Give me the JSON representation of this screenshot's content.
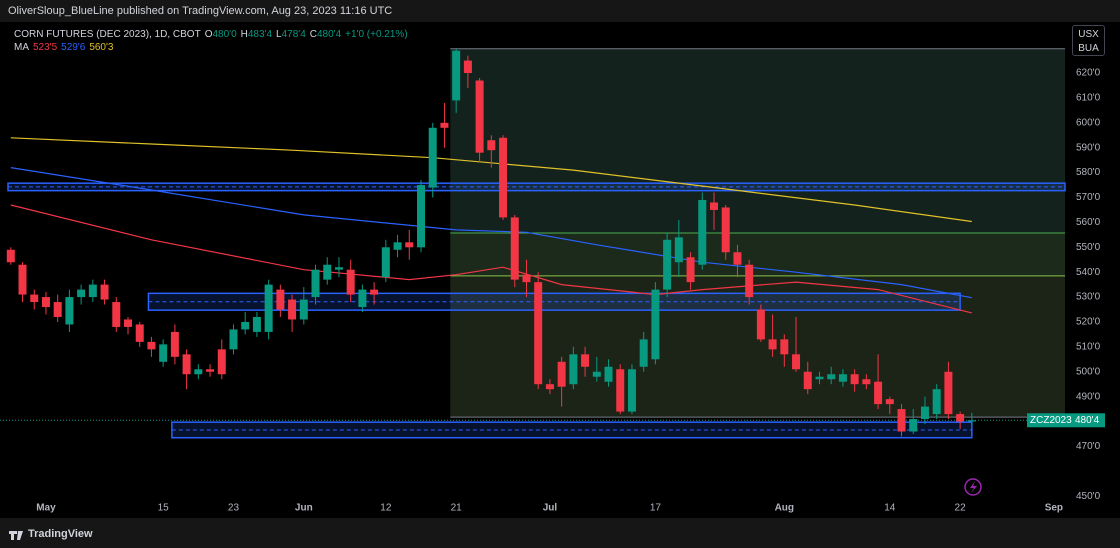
{
  "publisher": "OliverSloup_BlueLine published on TradingView.com, Aug 23, 2023 11:16 UTC",
  "currency_box": [
    "USX",
    "BUA"
  ],
  "footer": "TradingView",
  "chart_data": {
    "type": "candlestick",
    "title": "CORN FUTURES (DEC 2023), 1D, CBOT",
    "ohlc_labels": [
      {
        "key": "O",
        "value": "480'0"
      },
      {
        "key": "H",
        "value": "483'4"
      },
      {
        "key": "L",
        "value": "478'4"
      },
      {
        "key": "C",
        "value": "480'4"
      },
      {
        "key": "",
        "value": "+1'0 (+0.21%)"
      }
    ],
    "up_color": "#089981",
    "down_color": "#f23645",
    "categories": [
      null,
      null,
      null,
      "May",
      null,
      null,
      null,
      null,
      null,
      null,
      null,
      null,
      null,
      "15",
      null,
      null,
      null,
      null,
      null,
      "23",
      null,
      null,
      null,
      null,
      null,
      "Jun",
      null,
      null,
      null,
      null,
      null,
      null,
      "12",
      null,
      null,
      null,
      null,
      null,
      "21",
      null,
      null,
      null,
      null,
      null,
      null,
      null,
      "Jul",
      null,
      null,
      null,
      null,
      null,
      null,
      null,
      null,
      "17",
      null,
      null,
      null,
      null,
      null,
      null,
      null,
      null,
      null,
      null,
      "Aug",
      null,
      null,
      null,
      null,
      null,
      null,
      null,
      null,
      "14",
      null,
      null,
      null,
      null,
      null,
      "22",
      null,
      null,
      null,
      null,
      null,
      null,
      null,
      "Sep"
    ],
    "open": [
      549,
      543,
      531,
      530,
      528,
      519,
      530,
      530,
      535,
      528,
      521,
      519,
      512,
      504,
      516,
      507,
      499,
      501,
      509,
      509,
      517,
      516,
      516,
      533,
      529,
      521,
      530,
      537,
      541,
      541,
      526,
      533,
      538,
      549,
      552,
      550,
      574,
      600,
      609,
      625,
      617,
      593,
      594,
      562,
      539,
      536,
      495,
      504,
      495,
      507,
      498,
      496,
      501,
      484,
      502,
      505,
      533,
      544,
      546,
      543,
      568,
      566,
      548,
      543,
      525,
      513,
      513,
      507,
      500,
      497,
      497,
      496,
      499,
      497,
      496,
      489,
      485,
      476,
      481,
      483,
      500,
      483,
      480,
      null,
      null,
      null,
      null,
      null,
      null,
      null
    ],
    "high": [
      550,
      544,
      533,
      532,
      531,
      533,
      535,
      537,
      537,
      530,
      522,
      520,
      514,
      513,
      519,
      509,
      503,
      503,
      513,
      519,
      524,
      524,
      537,
      535,
      531,
      534,
      543,
      546,
      546,
      545,
      535,
      536,
      553,
      555,
      557,
      577,
      600,
      608,
      630,
      627,
      618,
      595,
      595,
      563,
      545,
      540,
      497,
      506,
      510,
      510,
      506,
      505,
      503,
      503,
      516,
      536,
      556,
      561,
      548,
      572,
      572,
      567,
      551,
      545,
      527,
      523,
      515,
      522,
      504,
      500,
      502,
      501,
      501,
      499,
      507,
      490,
      487,
      485,
      490,
      495,
      504,
      484,
      483.5,
      null,
      null,
      null,
      null,
      null,
      null,
      null
    ],
    "low": [
      543,
      528,
      525,
      523,
      520,
      516,
      527,
      528,
      527,
      516,
      515,
      510,
      506,
      502,
      503,
      493,
      497,
      498,
      497,
      507,
      515,
      514,
      513,
      522,
      516,
      519,
      527,
      535,
      538,
      528,
      524,
      527,
      536,
      546,
      545,
      548,
      570,
      590,
      604,
      614,
      584,
      582,
      561,
      534,
      530,
      493,
      491,
      486,
      493,
      498,
      496,
      494,
      483,
      483,
      500,
      503,
      530,
      538,
      533,
      541,
      557,
      545,
      538,
      527,
      512,
      506,
      502,
      500,
      491,
      495,
      495,
      494,
      492,
      493,
      485,
      483,
      474,
      475,
      479,
      481,
      481,
      477,
      478.5,
      null,
      null,
      null,
      null,
      null,
      null,
      null
    ],
    "close": [
      544,
      531,
      528,
      526,
      522,
      530,
      533,
      535,
      529,
      518,
      518,
      512,
      509,
      511,
      506,
      499,
      501,
      500,
      499,
      517,
      520,
      522,
      535,
      525,
      521,
      529,
      541,
      543,
      542,
      531,
      533,
      531,
      550,
      552,
      550,
      575,
      598,
      598,
      629,
      620,
      588,
      589,
      562,
      537,
      536,
      495,
      493,
      494,
      507,
      502,
      500,
      502,
      484,
      501,
      513,
      533,
      553,
      554,
      536,
      569,
      565,
      548,
      543,
      530,
      513,
      509,
      507,
      501,
      493,
      498,
      499,
      499,
      495,
      495,
      487,
      487,
      476,
      481,
      486,
      493,
      483,
      480,
      480.5,
      null,
      null,
      null,
      null,
      null,
      null,
      null
    ],
    "moving_averages": {
      "title": "MA",
      "series": [
        {
          "color": "#f23645",
          "value_label": "523'5",
          "x": [
            0,
            12,
            25,
            34,
            38,
            42,
            47,
            55,
            59,
            67,
            74,
            82
          ],
          "values": [
            567,
            553,
            541,
            537,
            539,
            542,
            535,
            531,
            533,
            536,
            533,
            523.625
          ]
        },
        {
          "color": "#2962ff",
          "value_label": "529'6",
          "x": [
            0,
            12,
            25,
            38,
            44,
            50,
            59,
            67,
            76,
            82
          ],
          "values": [
            582,
            573,
            563,
            557,
            556,
            551,
            544,
            540,
            535,
            529.75
          ]
        },
        {
          "color": "#e0c12a",
          "value_label": "560'3",
          "x": [
            0,
            12,
            24,
            36,
            48,
            60,
            72,
            82
          ],
          "values": [
            594,
            591.5,
            589,
            586,
            581,
            574,
            567,
            560.375
          ]
        }
      ]
    },
    "zones": [
      {
        "top": 575.75,
        "bottom": 572.75,
        "start": 0,
        "end": 90,
        "color": "#2962ff"
      },
      {
        "top": 531.5,
        "bottom": 524.75,
        "start": 12,
        "end": 81,
        "color": "#2962ff"
      },
      {
        "top": 479.75,
        "bottom": 473.5,
        "start": 14,
        "end": 82,
        "color": "#2962ff"
      }
    ],
    "fib": {
      "start": 38,
      "levels": [
        629.75,
        555.75,
        538.5,
        481.75
      ],
      "line_colors": [
        "#787b86",
        "#4caf50",
        "#8bc34a",
        "#787b86"
      ],
      "fill_colors": [
        "#13221d",
        "#1b2a1b",
        "#1c2418"
      ]
    },
    "symbol": "ZCZ2023",
    "last_price": 480.5,
    "last_label": "480'4",
    "ylim": [
      441.25,
      640.5
    ],
    "yticks": [
      {
        "value": 620,
        "label": "620'0"
      },
      {
        "value": 610,
        "label": "610'0"
      },
      {
        "value": 600,
        "label": "600'0"
      },
      {
        "value": 590,
        "label": "590'0"
      },
      {
        "value": 580,
        "label": "580'0"
      },
      {
        "value": 570,
        "label": "570'0"
      },
      {
        "value": 560,
        "label": "560'0"
      },
      {
        "value": 550,
        "label": "550'0"
      },
      {
        "value": 540,
        "label": "540'0"
      },
      {
        "value": 530,
        "label": "530'0"
      },
      {
        "value": 520,
        "label": "520'0"
      },
      {
        "value": 510,
        "label": "510'0"
      },
      {
        "value": 500,
        "label": "500'0"
      },
      {
        "value": 490,
        "label": "490'0"
      },
      {
        "value": 470,
        "label": "470'0"
      },
      {
        "value": 450,
        "label": "450'0"
      }
    ]
  }
}
